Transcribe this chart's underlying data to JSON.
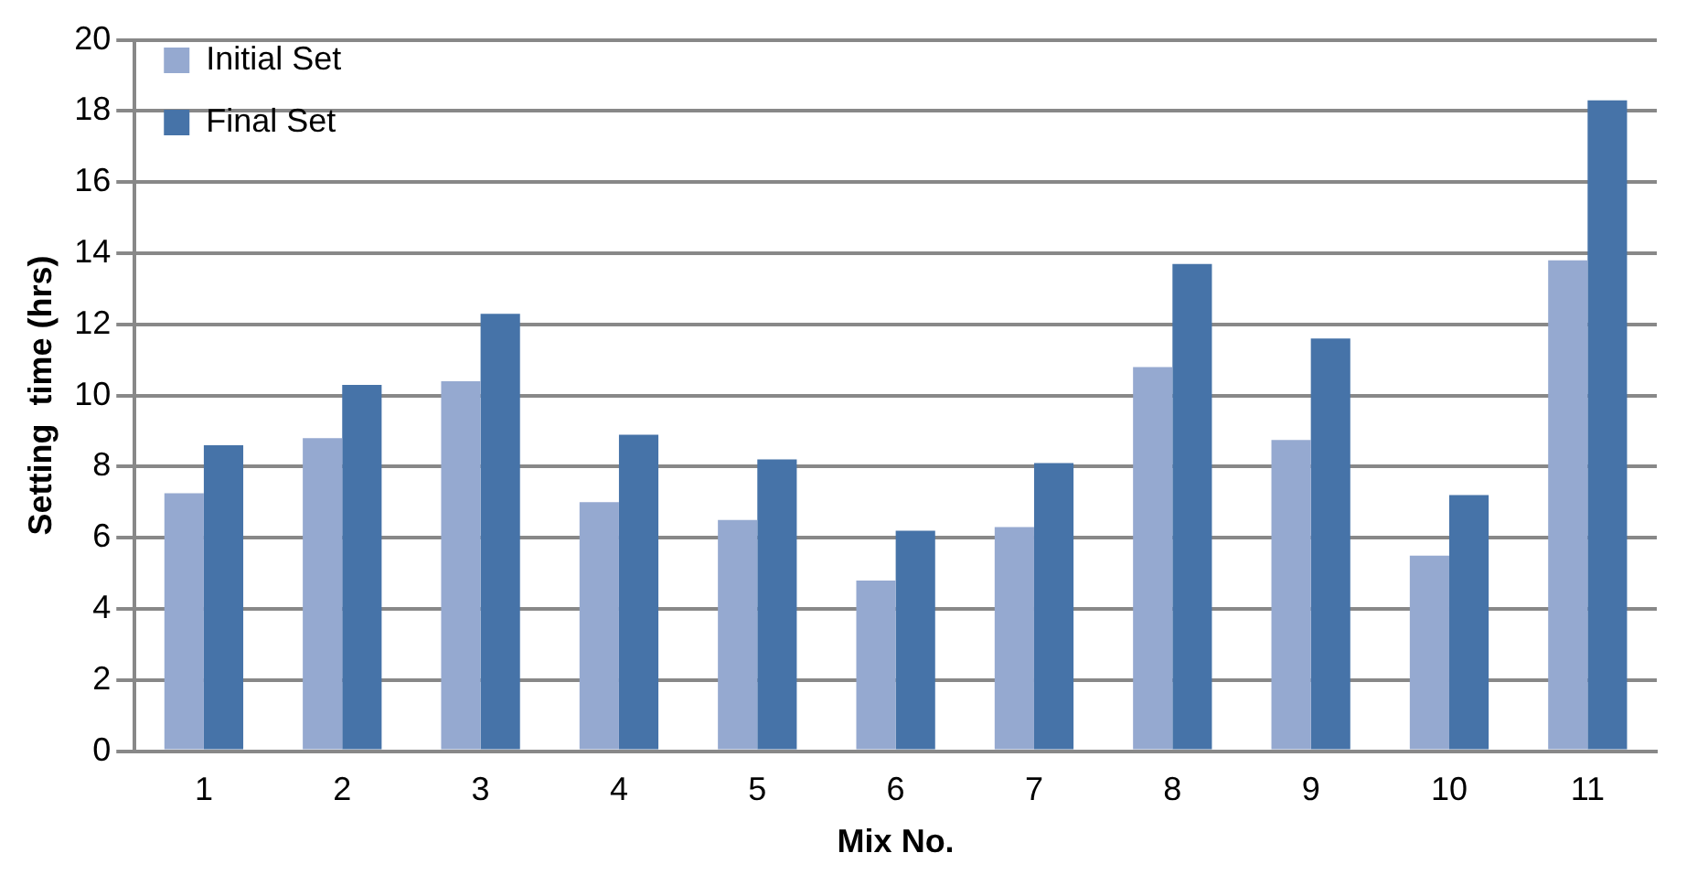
{
  "chart_data": {
    "type": "bar",
    "xlabel": "Mix No.",
    "ylabel": "Setting  time (hrs)",
    "categories": [
      "1",
      "2",
      "3",
      "4",
      "5",
      "6",
      "7",
      "8",
      "9",
      "10",
      "11"
    ],
    "series": [
      {
        "name": "Initial Set",
        "color": "#95a9d0",
        "values": [
          7.25,
          8.8,
          10.4,
          7.0,
          6.5,
          4.8,
          6.3,
          10.8,
          8.75,
          5.5,
          13.8
        ]
      },
      {
        "name": "Final Set",
        "color": "#4673a8",
        "values": [
          8.6,
          10.3,
          12.3,
          8.9,
          8.2,
          6.2,
          8.1,
          13.7,
          11.6,
          7.2,
          18.3
        ]
      }
    ],
    "ylim": [
      0,
      20
    ],
    "yticks": [
      0,
      2,
      4,
      6,
      8,
      10,
      12,
      14,
      16,
      18,
      20
    ],
    "grid": "y",
    "legend": "top left"
  }
}
